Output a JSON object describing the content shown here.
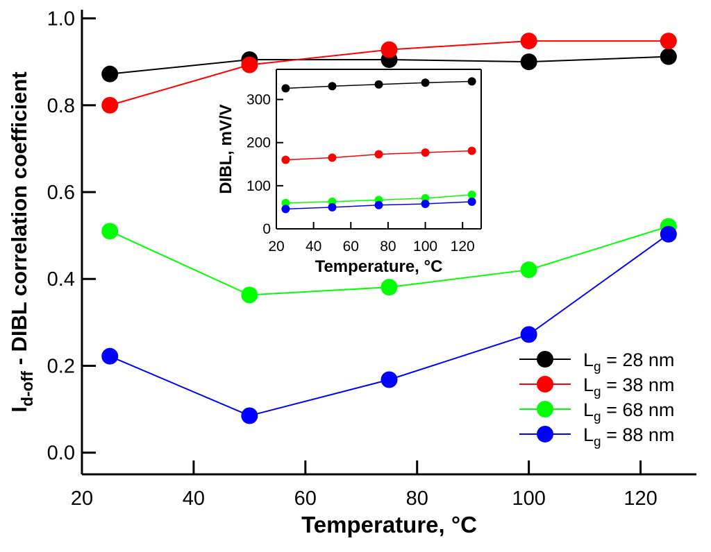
{
  "chart_data": [
    {
      "type": "line",
      "title": "",
      "xlabel": "Temperature, °C",
      "ylabel": "Id-off - DIBL correlation coefficient",
      "ylabel_parts": {
        "main": "I",
        "sub": "d-off",
        "rest": " - DIBL correlation coefficient"
      },
      "xlim": [
        20,
        130
      ],
      "ylim": [
        -0.05,
        1.02
      ],
      "xticks": [
        20,
        40,
        60,
        80,
        100,
        120
      ],
      "xtick_labels": [
        "20",
        "40",
        "60",
        "80",
        "100",
        "120"
      ],
      "yticks": [
        0.0,
        0.2,
        0.4,
        0.6,
        0.8,
        1.0
      ],
      "ytick_labels": [
        "0.0",
        "0.2",
        "0.4",
        "0.6",
        "0.8",
        "1.0"
      ],
      "legend_position": "bottom-right",
      "series": [
        {
          "name": "Lg = 28 nm",
          "label_main": "L",
          "label_sub": "g",
          "label_rest": " = 28 nm",
          "color": "#000000",
          "points": [
            [
              25,
              0.872
            ],
            [
              50,
              0.905
            ],
            [
              75,
              0.905
            ],
            [
              100,
              0.9
            ],
            [
              125,
              0.912
            ]
          ]
        },
        {
          "name": "Lg = 38 nm",
          "label_main": "L",
          "label_sub": "g",
          "label_rest": " = 38 nm",
          "color": "#ff0000",
          "points": [
            [
              25,
              0.8
            ],
            [
              50,
              0.893
            ],
            [
              75,
              0.928
            ],
            [
              100,
              0.948
            ],
            [
              125,
              0.948
            ]
          ]
        },
        {
          "name": "Lg = 68 nm",
          "label_main": "L",
          "label_sub": "g",
          "label_rest": " = 68 nm",
          "color": "#00ff00",
          "points": [
            [
              25,
              0.51
            ],
            [
              50,
              0.363
            ],
            [
              75,
              0.381
            ],
            [
              100,
              0.421
            ],
            [
              125,
              0.521
            ]
          ]
        },
        {
          "name": "Lg = 88 nm",
          "label_main": "L",
          "label_sub": "g",
          "label_rest": " = 88 nm",
          "color": "#0000ff",
          "points": [
            [
              25,
              0.222
            ],
            [
              50,
              0.085
            ],
            [
              75,
              0.168
            ],
            [
              100,
              0.272
            ],
            [
              125,
              0.503
            ]
          ]
        }
      ]
    },
    {
      "type": "line",
      "title": "",
      "xlabel": "Temperature, °C",
      "ylabel": "DIBL, mV/V",
      "xlim": [
        20,
        130
      ],
      "ylim": [
        0,
        370
      ],
      "xticks": [
        20,
        40,
        60,
        80,
        100,
        120
      ],
      "xtick_labels": [
        "20",
        "40",
        "60",
        "80",
        "100",
        "120"
      ],
      "yticks": [
        0,
        100,
        200,
        300
      ],
      "ytick_labels": [
        "0",
        "100",
        "200",
        "300"
      ],
      "series": [
        {
          "name": "Lg = 28 nm",
          "color": "#000000",
          "points": [
            [
              25,
              326
            ],
            [
              50,
              331
            ],
            [
              75,
              335
            ],
            [
              100,
              339
            ],
            [
              125,
              342
            ]
          ]
        },
        {
          "name": "Lg = 38 nm",
          "color": "#ff0000",
          "points": [
            [
              25,
              160
            ],
            [
              50,
              165
            ],
            [
              75,
              173
            ],
            [
              100,
              177
            ],
            [
              125,
              181
            ]
          ]
        },
        {
          "name": "Lg = 68 nm",
          "color": "#00ff00",
          "points": [
            [
              25,
              60
            ],
            [
              50,
              63
            ],
            [
              75,
              67
            ],
            [
              100,
              71
            ],
            [
              125,
              79
            ]
          ]
        },
        {
          "name": "Lg = 88 nm",
          "color": "#0000ff",
          "points": [
            [
              25,
              46
            ],
            [
              50,
              50
            ],
            [
              75,
              55
            ],
            [
              100,
              58
            ],
            [
              125,
              63
            ]
          ]
        }
      ]
    }
  ]
}
